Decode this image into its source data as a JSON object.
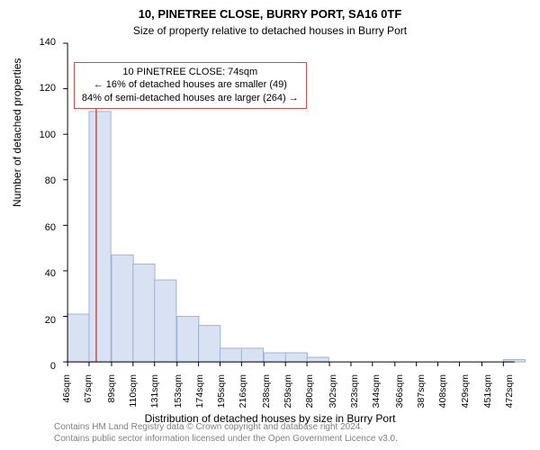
{
  "title": "10, PINETREE CLOSE, BURRY PORT, SA16 0TF",
  "subtitle": "Size of property relative to detached houses in Burry Port",
  "ylabel": "Number of detached properties",
  "xlabel": "Distribution of detached houses by size in Burry Port",
  "footer_line1": "Contains HM Land Registry data © Crown copyright and database right 2024.",
  "footer_line2": "Contains public sector information licensed under the Open Government Licence v3.0.",
  "annotation": {
    "line1": "10 PINETREE CLOSE: 74sqm",
    "line2": "← 16% of detached houses are smaller (49)",
    "line3": "84% of semi-detached houses are larger (264) →",
    "border_color": "#c0504d"
  },
  "chart": {
    "type": "histogram",
    "background_color": "#ffffff",
    "axis_color": "#000000",
    "bar_fill": "#d8e2f3",
    "bar_stroke": "#9cb3d6",
    "marker_line_color": "#c0504d",
    "marker_x": 74,
    "ylim": [
      0,
      140
    ],
    "ytick_step": 20,
    "yticks": [
      0,
      20,
      40,
      60,
      80,
      100,
      120,
      140
    ],
    "xlim": [
      46,
      483
    ],
    "xticks": [
      46,
      67,
      89,
      110,
      131,
      153,
      174,
      195,
      216,
      238,
      259,
      280,
      302,
      323,
      344,
      366,
      387,
      408,
      429,
      451,
      472
    ],
    "xtick_unit": "sqm",
    "bin_width": 21.3,
    "bins": [
      {
        "start": 46,
        "count": 21
      },
      {
        "start": 67,
        "count": 110
      },
      {
        "start": 89,
        "count": 47
      },
      {
        "start": 110,
        "count": 43
      },
      {
        "start": 131,
        "count": 36
      },
      {
        "start": 153,
        "count": 20
      },
      {
        "start": 174,
        "count": 16
      },
      {
        "start": 195,
        "count": 6
      },
      {
        "start": 216,
        "count": 6
      },
      {
        "start": 238,
        "count": 4
      },
      {
        "start": 259,
        "count": 4
      },
      {
        "start": 280,
        "count": 2
      },
      {
        "start": 302,
        "count": 0
      },
      {
        "start": 323,
        "count": 0
      },
      {
        "start": 344,
        "count": 0
      },
      {
        "start": 366,
        "count": 0
      },
      {
        "start": 387,
        "count": 0
      },
      {
        "start": 408,
        "count": 0
      },
      {
        "start": 429,
        "count": 0
      },
      {
        "start": 451,
        "count": 0
      },
      {
        "start": 472,
        "count": 1
      }
    ]
  }
}
